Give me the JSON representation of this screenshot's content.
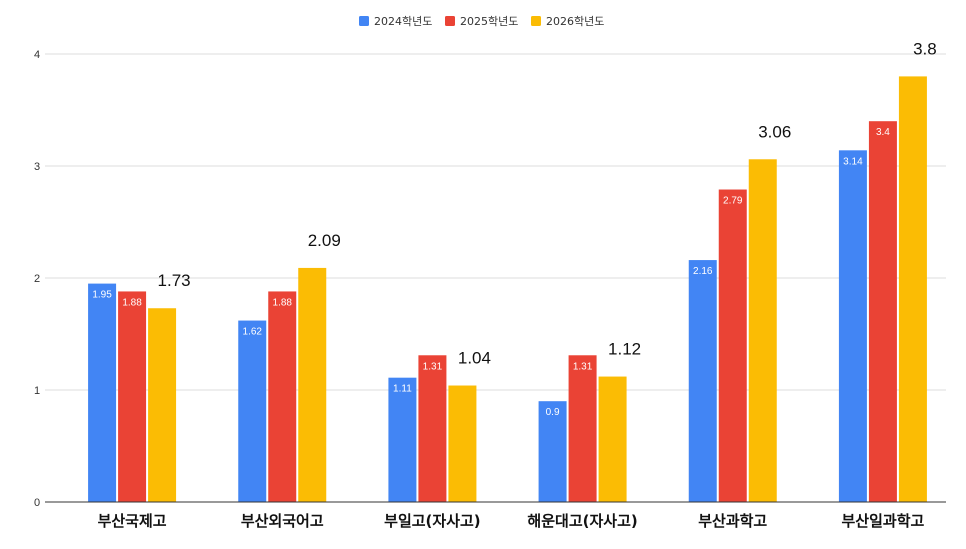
{
  "chart_data": {
    "type": "bar",
    "title": "",
    "xlabel": "",
    "ylabel": "",
    "ylim": [
      0,
      4
    ],
    "yticks": [
      "0",
      "1",
      "2",
      "3",
      "4"
    ],
    "grid": true,
    "legend_position": "top-center",
    "categories": [
      "부산국제고",
      "부산외국어고",
      "부일고(자사고)",
      "해운대고(자사고)",
      "부산과학고",
      "부산일과학고"
    ],
    "series": [
      {
        "name": "2024학년도",
        "color": "#4285F4",
        "values": [
          1.95,
          1.62,
          1.11,
          0.9,
          2.16,
          3.14
        ],
        "labels": [
          "1.95",
          "1.62",
          "1.11",
          "0.9",
          "2.16",
          "3.14"
        ]
      },
      {
        "name": "2025학년도",
        "color": "#EA4335",
        "values": [
          1.88,
          1.88,
          1.31,
          1.31,
          2.79,
          3.4
        ],
        "labels": [
          "1.88",
          "1.88",
          "1.31",
          "1.31",
          "2.79",
          "3.4"
        ]
      },
      {
        "name": "2026학년도",
        "color": "#FBBC04",
        "values": [
          1.73,
          2.09,
          1.04,
          1.12,
          3.06,
          3.8
        ],
        "labels": [
          "1.73",
          "2.09",
          "1.04",
          "1.12",
          "3.06",
          "3.8"
        ]
      }
    ]
  }
}
